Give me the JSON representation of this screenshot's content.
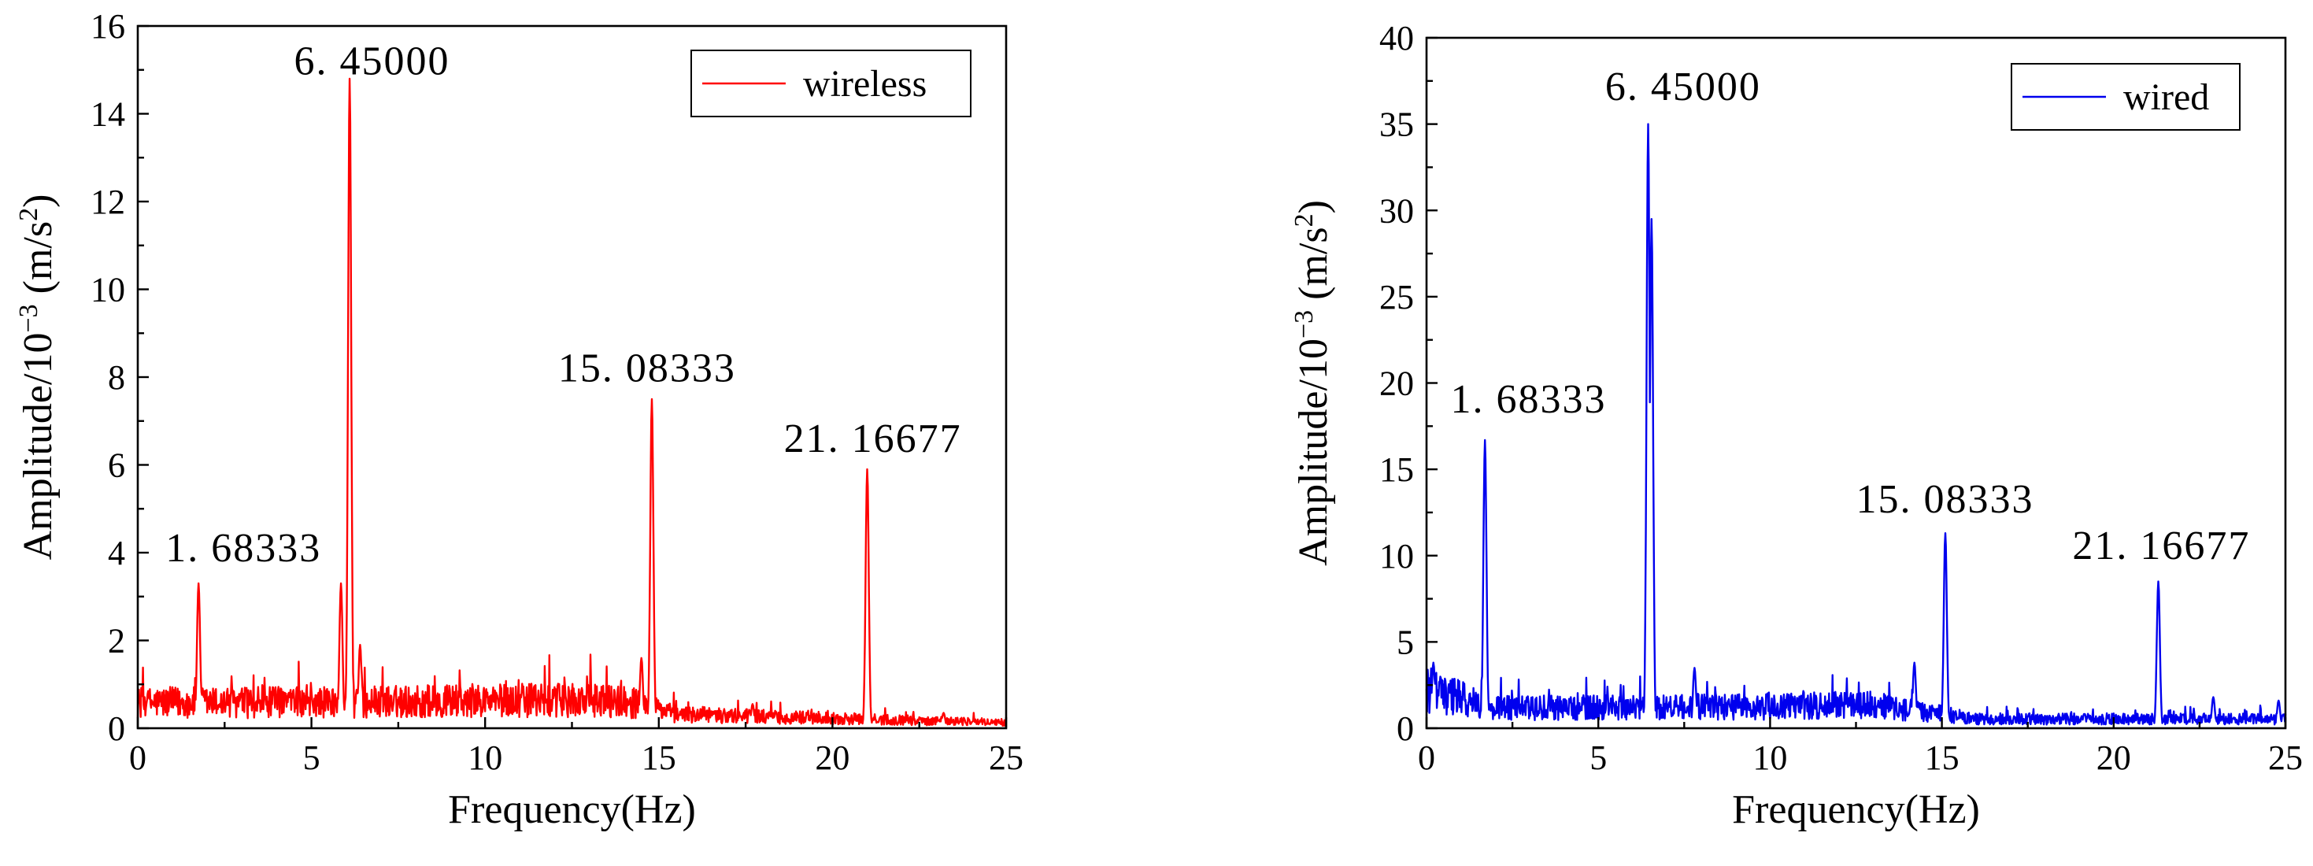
{
  "chart_data": [
    {
      "type": "line",
      "title": "",
      "xlabel": "Frequency(Hz)",
      "ylabel": {
        "base": "Amplitude/10",
        "exp": "−3",
        "unit_open": " (m/s",
        "unit_exp": "2",
        "unit_close": ")"
      },
      "xlim": [
        0,
        25
      ],
      "ylim": [
        0,
        16
      ],
      "xticks": [
        0,
        5,
        10,
        15,
        20,
        25
      ],
      "yticks": [
        0,
        2,
        4,
        6,
        8,
        10,
        12,
        14,
        16
      ],
      "color": "#ff0000",
      "legend": {
        "label": "wireless",
        "position": "top-right"
      },
      "series": [
        {
          "name": "wireless",
          "peaks": [
            {
              "x": 1.75,
              "y": 3.3
            },
            {
              "x": 5.85,
              "y": 3.3
            },
            {
              "x": 6.1,
              "y": 14.8
            },
            {
              "x": 6.4,
              "y": 1.9
            },
            {
              "x": 14.5,
              "y": 1.6
            },
            {
              "x": 14.8,
              "y": 7.5
            },
            {
              "x": 17.7,
              "y": 0.55
            },
            {
              "x": 21.0,
              "y": 5.9
            },
            {
              "x": 23.2,
              "y": 0.35
            }
          ],
          "noise_profile": [
            {
              "x": 0,
              "y": 0.65
            },
            {
              "x": 5,
              "y": 0.65
            },
            {
              "x": 10,
              "y": 0.7
            },
            {
              "x": 14,
              "y": 0.7
            },
            {
              "x": 15.5,
              "y": 0.35
            },
            {
              "x": 20,
              "y": 0.25
            },
            {
              "x": 25,
              "y": 0.15
            }
          ]
        }
      ],
      "annotations": [
        {
          "text": "1. 68333",
          "x": 0.8,
          "y": 3.8
        },
        {
          "text": "6. 45000",
          "x": 4.5,
          "y": 14.9
        },
        {
          "text": "15. 08333",
          "x": 12.1,
          "y": 7.9
        },
        {
          "text": "21. 16677",
          "x": 18.6,
          "y": 6.3
        }
      ]
    },
    {
      "type": "line",
      "title": "",
      "xlabel": "Frequency(Hz)",
      "ylabel": {
        "base": "Amplitude/10",
        "exp": "−3",
        "unit_open": " (m/s",
        "unit_exp": "2",
        "unit_close": ")"
      },
      "xlim": [
        0,
        25
      ],
      "ylim": [
        0,
        40
      ],
      "xticks": [
        0,
        5,
        10,
        15,
        20,
        25
      ],
      "yticks": [
        0,
        5,
        10,
        15,
        20,
        25,
        30,
        35,
        40
      ],
      "color": "#0000ee",
      "legend": {
        "label": "wired",
        "position": "top-right"
      },
      "series": [
        {
          "name": "wired",
          "peaks": [
            {
              "x": 0.2,
              "y": 3.8
            },
            {
              "x": 1.7,
              "y": 16.7
            },
            {
              "x": 6.45,
              "y": 35.0
            },
            {
              "x": 6.55,
              "y": 29.5
            },
            {
              "x": 7.8,
              "y": 3.5
            },
            {
              "x": 14.2,
              "y": 3.8
            },
            {
              "x": 15.1,
              "y": 11.3
            },
            {
              "x": 21.3,
              "y": 8.5
            },
            {
              "x": 22.9,
              "y": 1.8
            },
            {
              "x": 24.8,
              "y": 1.6
            }
          ],
          "noise_profile": [
            {
              "x": 0,
              "y": 2.5
            },
            {
              "x": 2,
              "y": 1.3
            },
            {
              "x": 10,
              "y": 1.4
            },
            {
              "x": 13,
              "y": 1.5
            },
            {
              "x": 16,
              "y": 0.6
            },
            {
              "x": 20,
              "y": 0.6
            },
            {
              "x": 25,
              "y": 0.6
            }
          ]
        }
      ],
      "annotations": [
        {
          "text": "1. 68333",
          "x": 0.7,
          "y": 18.3
        },
        {
          "text": "6. 45000",
          "x": 5.2,
          "y": 36.4
        },
        {
          "text": "15. 08333",
          "x": 12.5,
          "y": 12.5
        },
        {
          "text": "21. 16677",
          "x": 18.8,
          "y": 9.8
        }
      ]
    }
  ]
}
